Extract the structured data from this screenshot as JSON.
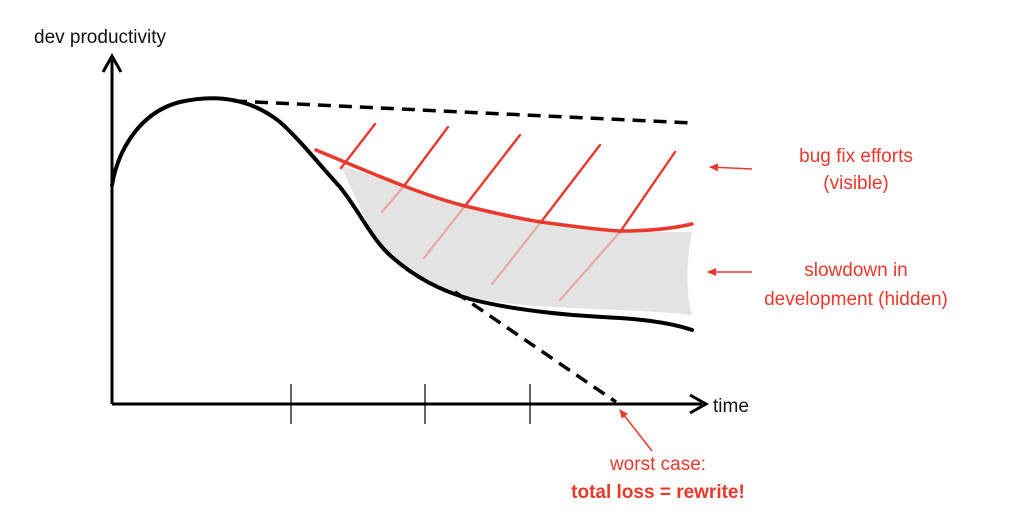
{
  "axes": {
    "y_label": "dev productivity",
    "x_label": "time"
  },
  "annotations": {
    "bug_fix": {
      "line1": "bug fix efforts",
      "line2": "(visible)"
    },
    "slowdown": {
      "line1": "slowdown in",
      "line2": "development (hidden)"
    },
    "worst_case": {
      "line1": "worst case:",
      "line2": "total loss = rewrite!"
    }
  },
  "colors": {
    "ink": "#000000",
    "accent": "#e8392c",
    "hatch_faded": "#e7a8a3",
    "hidden_area": "#e3e3e3"
  }
}
